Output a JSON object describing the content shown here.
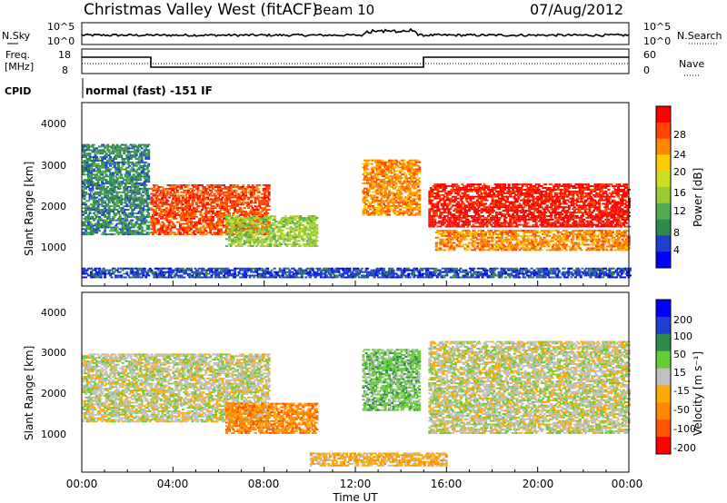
{
  "header": {
    "station": "Christmas Valley West (fitACF)",
    "beam": "Beam 10",
    "date": "07/Aug/2012"
  },
  "panels": {
    "nsky": {
      "left_label": "N.Sky",
      "left_ticks": [
        "10^5",
        "10^0"
      ],
      "right_label": "N.Search",
      "right_ticks": [
        "10^5",
        "10^0"
      ]
    },
    "freq": {
      "left_label_1": "Freq.",
      "left_label_2": "[MHz]",
      "left_ticks": [
        "18",
        "8"
      ],
      "right_label": "Nave",
      "right_ticks": [
        "60",
        "0"
      ]
    },
    "cpid": {
      "label": "CPID",
      "text": "normal (fast) -151 IF"
    }
  },
  "colors": {
    "power": [
      "#0000ff",
      "#1f3fd0",
      "#2e8a4a",
      "#55aa55",
      "#99cc33",
      "#ccdd22",
      "#ffcc00",
      "#ff8800",
      "#ff4400",
      "#ff0000"
    ],
    "velocity": [
      "#ff0000",
      "#ff5500",
      "#ff8800",
      "#ffaa00",
      "#c0c0c0",
      "#66cc33",
      "#2e8a4a",
      "#1f3fd0",
      "#0000ff"
    ]
  },
  "chart_data": [
    {
      "type": "heatmap",
      "name": "power",
      "ylabel": "Slant Range [km]",
      "xlabel": "",
      "yticks": [
        "1000",
        "2000",
        "3000",
        "4000"
      ],
      "xticks": [
        "00:00",
        "04:00",
        "08:00",
        "12:00",
        "16:00",
        "20:00",
        "00:00"
      ],
      "colorbar": {
        "label": "Power [dB]",
        "ticks": [
          "4",
          "8",
          "12",
          "16",
          "20",
          "24",
          "28"
        ]
      },
      "regions": [
        {
          "t0": 0.0,
          "t1": 2.9,
          "r0": 1300,
          "r1": 3600,
          "level": 2
        },
        {
          "t0": 3.0,
          "t1": 8.2,
          "r0": 1300,
          "r1": 2600,
          "level": 8
        },
        {
          "t0": 6.3,
          "t1": 10.3,
          "r0": 1000,
          "r1": 1800,
          "level": 4
        },
        {
          "t0": 12.3,
          "t1": 14.8,
          "r0": 1800,
          "r1": 3200,
          "level": 7
        },
        {
          "t0": 15.2,
          "t1": 24.0,
          "r0": 1500,
          "r1": 2600,
          "level": 9
        },
        {
          "t0": 15.5,
          "t1": 24.0,
          "r0": 900,
          "r1": 1400,
          "level": 7
        },
        {
          "t0": 0.0,
          "t1": 24.0,
          "r0": 200,
          "r1": 450,
          "level": 1
        }
      ]
    },
    {
      "type": "heatmap",
      "name": "velocity",
      "ylabel": "Slant Range [km]",
      "xlabel": "Time UT",
      "yticks": [
        "1000",
        "2000",
        "3000",
        "4000"
      ],
      "xticks": [
        "00:00",
        "04:00",
        "08:00",
        "12:00",
        "16:00",
        "20:00",
        "00:00"
      ],
      "colorbar": {
        "label": "Velocity [m s⁻¹]",
        "ticks": [
          "200",
          "100",
          "50",
          "15",
          "-15",
          "-50",
          "-100",
          "-200"
        ]
      },
      "regions": [
        {
          "t0": 0.0,
          "t1": 8.2,
          "r0": 1300,
          "r1": 3100,
          "level": 4
        },
        {
          "t0": 6.3,
          "t1": 10.3,
          "r0": 1000,
          "r1": 1800,
          "level": 2
        },
        {
          "t0": 12.3,
          "t1": 14.8,
          "r0": 1600,
          "r1": 3200,
          "level": 5
        },
        {
          "t0": 15.2,
          "t1": 24.0,
          "r0": 1000,
          "r1": 3400,
          "level": 4
        },
        {
          "t0": 10.0,
          "t1": 16.0,
          "r0": 150,
          "r1": 500,
          "level": 3
        }
      ]
    }
  ]
}
